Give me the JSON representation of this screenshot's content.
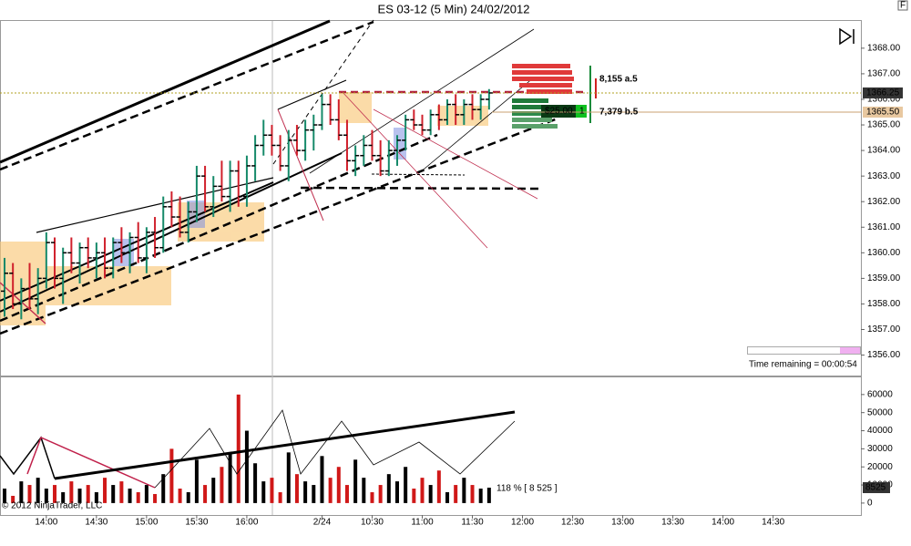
{
  "chart_data": [
    {
      "type": "ohlc",
      "title": "ES 03-12 (5 Min)  24/02/2012",
      "up_color": "#168a6a",
      "down_color": "#d0202c",
      "categories": [
        null,
        null,
        null,
        null,
        null,
        "14:00",
        null,
        null,
        null,
        null,
        null,
        "14:30",
        null,
        null,
        null,
        null,
        null,
        "15:00",
        null,
        null,
        null,
        null,
        null,
        "15:30",
        null,
        null,
        null,
        null,
        null,
        "16:00",
        null,
        null,
        null,
        null,
        null,
        null,
        null,
        null,
        "2/24",
        null,
        null,
        null,
        null,
        null,
        "10:30",
        null,
        null,
        null,
        null,
        null,
        "11:00",
        null,
        null,
        null,
        null,
        null,
        "11:30",
        null,
        null,
        null,
        null,
        null,
        "12:00",
        null,
        null,
        null,
        null,
        null,
        "12:30",
        null,
        null,
        null,
        null,
        null,
        "13:00",
        null,
        null,
        null,
        null,
        null,
        "13:30",
        null,
        null,
        null,
        null,
        null,
        "14:00",
        null,
        null,
        null,
        null,
        null,
        "14:30",
        null,
        null,
        null,
        null,
        null,
        null,
        null,
        null,
        null,
        null
      ],
      "open": [
        1358.5,
        1359.2,
        1358.0,
        1358.6,
        1358.2,
        1359.0,
        1360.4,
        1359.0,
        1360.0,
        1359.6,
        1360.2,
        1359.8,
        1360.0,
        1359.4,
        1360.4,
        1360.0,
        1360.6,
        1359.8,
        1360.8,
        1360.2,
        1361.8,
        1361.4,
        1360.8,
        1361.6,
        1363.0,
        1361.8,
        1362.6,
        1362.2,
        1363.2,
        1362.2,
        1363.4,
        1364.2,
        1364.6,
        1364.2,
        1363.4,
        1364.4,
        1364.0,
        1364.8,
        1365.0,
        1365.8,
        1365.2,
        1364.6,
        1363.6,
        1363.8,
        1364.2,
        1363.8,
        1363.2,
        1364.0,
        1364.4,
        1365.2,
        1365.0,
        1364.8,
        1365.4,
        1365.2,
        1365.8,
        1365.4,
        1365.8,
        1365.6,
        1366.0,
        null,
        null,
        null,
        null,
        null,
        null,
        null,
        null,
        null,
        null,
        null,
        null,
        null,
        null,
        null,
        null,
        null,
        null,
        null,
        null,
        null,
        null,
        null,
        null,
        null,
        null,
        null,
        null,
        null,
        null,
        null,
        null,
        null,
        null,
        null,
        null,
        null,
        null,
        null,
        null,
        null,
        null,
        null,
        null
      ],
      "high": [
        1359.8,
        1359.6,
        1359.0,
        1359.6,
        1359.4,
        1360.8,
        1360.6,
        1360.2,
        1360.6,
        1360.4,
        1360.6,
        1360.4,
        1360.6,
        1360.6,
        1361.0,
        1360.8,
        1361.2,
        1361.0,
        1361.4,
        1362.2,
        1362.4,
        1362.2,
        1362.0,
        1363.4,
        1363.4,
        1363.0,
        1363.6,
        1363.6,
        1363.6,
        1363.8,
        1364.6,
        1365.2,
        1365.0,
        1364.6,
        1364.8,
        1365.0,
        1365.2,
        1365.4,
        1366.2,
        1366.2,
        1366.0,
        1365.2,
        1364.2,
        1364.6,
        1364.8,
        1364.4,
        1364.4,
        1364.6,
        1365.4,
        1365.6,
        1365.4,
        1365.6,
        1365.8,
        1366.0,
        1366.2,
        1366.0,
        1366.2,
        1366.2,
        1366.4,
        null,
        null,
        null,
        null,
        null,
        null,
        null,
        null,
        null,
        null,
        null,
        null,
        null,
        null,
        null,
        null,
        null,
        null,
        null,
        null,
        null,
        null,
        null,
        null,
        null,
        null,
        null,
        null,
        null,
        null,
        null,
        null,
        null,
        null,
        null,
        null,
        null,
        null,
        null,
        null,
        null,
        null,
        null,
        null
      ],
      "low": [
        1357.5,
        1357.8,
        1357.4,
        1357.8,
        1357.6,
        1358.6,
        1358.6,
        1358.0,
        1359.2,
        1358.8,
        1359.4,
        1359.0,
        1359.0,
        1359.0,
        1359.6,
        1359.2,
        1359.6,
        1359.2,
        1359.8,
        1360.0,
        1361.0,
        1360.6,
        1360.4,
        1361.2,
        1361.6,
        1361.4,
        1362.0,
        1361.6,
        1361.8,
        1361.8,
        1362.8,
        1363.8,
        1363.8,
        1363.2,
        1362.8,
        1363.8,
        1363.6,
        1364.0,
        1364.8,
        1365.0,
        1364.4,
        1363.2,
        1363.0,
        1363.4,
        1363.6,
        1363.0,
        1363.0,
        1363.4,
        1364.0,
        1364.8,
        1364.6,
        1364.6,
        1364.8,
        1365.0,
        1365.0,
        1365.0,
        1365.2,
        1365.2,
        1365.6,
        null,
        null,
        null,
        null,
        null,
        null,
        null,
        null,
        null,
        null,
        null,
        null,
        null,
        null,
        null,
        null,
        null,
        null,
        null,
        null,
        null,
        null,
        null,
        null,
        null,
        null,
        null,
        null,
        null,
        null,
        null,
        null,
        null,
        null,
        null,
        null,
        null,
        null,
        null,
        null,
        null,
        null,
        null,
        null
      ],
      "close": [
        1359.2,
        1358.0,
        1358.6,
        1358.2,
        1359.0,
        1360.4,
        1359.0,
        1360.0,
        1359.6,
        1360.2,
        1359.8,
        1360.0,
        1359.4,
        1360.4,
        1360.0,
        1360.6,
        1359.8,
        1360.8,
        1360.2,
        1361.8,
        1361.4,
        1360.8,
        1361.6,
        1363.0,
        1361.8,
        1362.6,
        1362.2,
        1363.2,
        1362.2,
        1363.4,
        1364.2,
        1364.6,
        1364.2,
        1363.4,
        1364.4,
        1364.0,
        1364.8,
        1365.0,
        1365.8,
        1365.2,
        1364.6,
        1363.6,
        1363.8,
        1364.2,
        1363.8,
        1363.2,
        1364.0,
        1364.4,
        1365.2,
        1365.0,
        1364.8,
        1365.4,
        1365.2,
        1365.8,
        1365.4,
        1365.8,
        1365.6,
        1366.0,
        1366.25,
        null,
        null,
        null,
        null,
        null,
        null,
        null,
        null,
        null,
        null,
        null,
        null,
        null,
        null,
        null,
        null,
        null,
        null,
        null,
        null,
        null,
        null,
        null,
        null,
        null,
        null,
        null,
        null,
        null,
        null,
        null,
        null,
        null,
        null,
        null,
        null,
        null,
        null,
        null,
        null,
        null,
        null,
        null,
        null
      ],
      "close_label": "1366.25",
      "order_price": {
        "value": 1365.5,
        "label": "1365.50"
      },
      "ylim": [
        1355.2,
        1369.1
      ],
      "yticks": [
        {
          "value": 1356,
          "label": "1356.00"
        },
        {
          "value": 1357,
          "label": "1357.00"
        },
        {
          "value": 1358,
          "label": "1358.00"
        },
        {
          "value": 1359,
          "label": "1359.00"
        },
        {
          "value": 1360,
          "label": "1360.00"
        },
        {
          "value": 1361,
          "label": "1361.00"
        },
        {
          "value": 1362,
          "label": "1362.00"
        },
        {
          "value": 1363,
          "label": "1363.00"
        },
        {
          "value": 1364,
          "label": "1364.00"
        },
        {
          "value": 1365,
          "label": "1365.00"
        },
        {
          "value": 1366,
          "label": "1366.00"
        },
        {
          "value": 1367,
          "label": "1367.00"
        },
        {
          "value": 1368,
          "label": "1368.00"
        }
      ],
      "grid": false,
      "annotations": [
        "8,155 a.5",
        "7,379 b.5",
        "$25.00",
        "1",
        "Time remaining = 00:00:54",
        "F"
      ]
    },
    {
      "type": "bar",
      "up_color": "#000000",
      "down_color": "#d01818",
      "values": [
        8000,
        4000,
        12000,
        10000,
        14000,
        8000,
        10000,
        6000,
        12000,
        8000,
        10000,
        6000,
        14000,
        10000,
        12000,
        8000,
        6000,
        10000,
        5000,
        16000,
        30000,
        8000,
        6000,
        24000,
        10000,
        14000,
        20000,
        28000,
        60000,
        40000,
        22000,
        12000,
        14000,
        6000,
        28000,
        16000,
        12000,
        10000,
        26000,
        14000,
        20000,
        10000,
        24000,
        14000,
        6000,
        10000,
        16000,
        12000,
        20000,
        8000,
        14000,
        10000,
        18000,
        6000,
        10000,
        14000,
        10000,
        8000,
        8525,
        null,
        null,
        null,
        null,
        null,
        null,
        null,
        null,
        null,
        null,
        null,
        null,
        null,
        null,
        null,
        null,
        null,
        null,
        null,
        null,
        null,
        null,
        null,
        null,
        null,
        null,
        null,
        null,
        null,
        null,
        null,
        null,
        null,
        null,
        null,
        null,
        null,
        null,
        null,
        null,
        null,
        null,
        null,
        null
      ],
      "ylim": [
        -6600,
        70000
      ],
      "yticks": [
        0,
        10000,
        20000,
        30000,
        40000,
        50000,
        60000
      ],
      "grid": false,
      "annotations": [
        "118 % [ 8 525 ]",
        "© 2012 NinjaTrader, LLC"
      ]
    }
  ]
}
